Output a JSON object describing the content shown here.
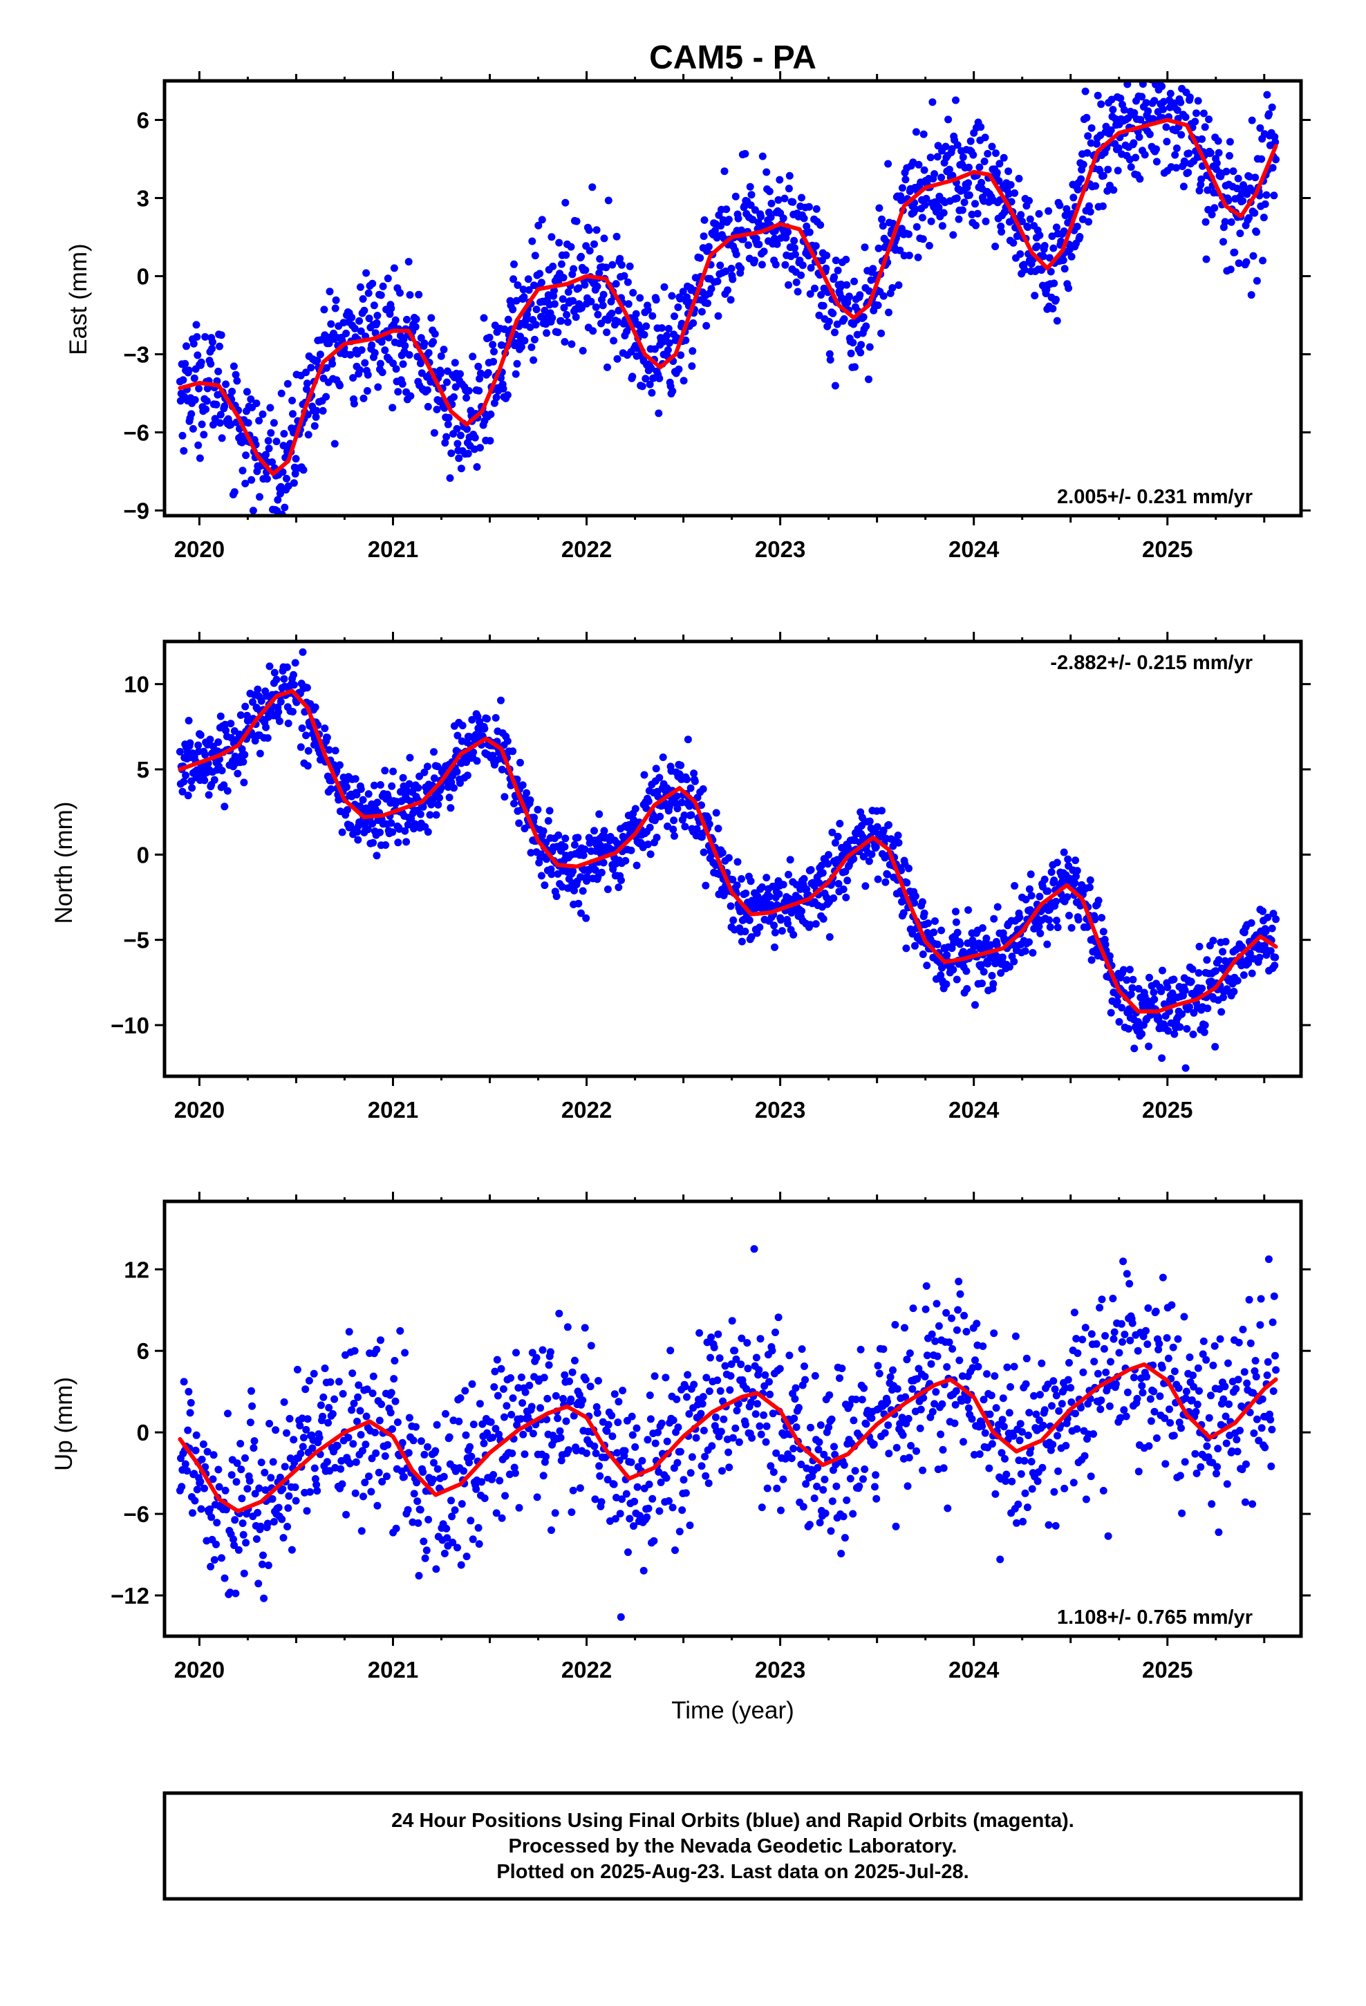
{
  "title": "CAM5 - PA",
  "colors": {
    "dots": "#0000ff",
    "fit": "#ff0000",
    "frame": "#000000"
  },
  "chart_data": [
    {
      "type": "scatter",
      "name": "east",
      "ylabel": "East (mm)",
      "xlabel": "",
      "xlim": [
        2019.82,
        2025.69
      ],
      "ylim": [
        -9.2,
        7.5
      ],
      "yticks": [
        -9,
        -6,
        -3,
        0,
        3,
        6
      ],
      "xticks": [
        2020,
        2021,
        2022,
        2023,
        2024,
        2025
      ],
      "rate_text": "2.005+/- 0.231 mm/yr",
      "rate_position": "bottom-right",
      "trend_rate": 2.005,
      "fit_points": [
        [
          2019.9,
          -4.3
        ],
        [
          2020.0,
          -4.1
        ],
        [
          2020.1,
          -4.2
        ],
        [
          2020.2,
          -5.4
        ],
        [
          2020.3,
          -6.9
        ],
        [
          2020.38,
          -7.6
        ],
        [
          2020.46,
          -7.1
        ],
        [
          2020.55,
          -5.0
        ],
        [
          2020.64,
          -3.3
        ],
        [
          2020.75,
          -2.6
        ],
        [
          2020.9,
          -2.4
        ],
        [
          2021.0,
          -2.1
        ],
        [
          2021.08,
          -2.1
        ],
        [
          2021.18,
          -3.4
        ],
        [
          2021.3,
          -5.2
        ],
        [
          2021.38,
          -5.7
        ],
        [
          2021.46,
          -5.2
        ],
        [
          2021.55,
          -3.6
        ],
        [
          2021.64,
          -1.7
        ],
        [
          2021.75,
          -0.5
        ],
        [
          2021.9,
          -0.3
        ],
        [
          2022.0,
          0.0
        ],
        [
          2022.1,
          -0.1
        ],
        [
          2022.2,
          -1.4
        ],
        [
          2022.3,
          -3.0
        ],
        [
          2022.38,
          -3.5
        ],
        [
          2022.46,
          -3.0
        ],
        [
          2022.55,
          -1.1
        ],
        [
          2022.64,
          0.8
        ],
        [
          2022.75,
          1.5
        ],
        [
          2022.9,
          1.7
        ],
        [
          2023.0,
          2.0
        ],
        [
          2023.1,
          1.8
        ],
        [
          2023.2,
          0.4
        ],
        [
          2023.3,
          -1.1
        ],
        [
          2023.38,
          -1.6
        ],
        [
          2023.46,
          -1.1
        ],
        [
          2023.55,
          0.8
        ],
        [
          2023.64,
          2.7
        ],
        [
          2023.75,
          3.4
        ],
        [
          2023.9,
          3.7
        ],
        [
          2024.0,
          4.0
        ],
        [
          2024.08,
          3.9
        ],
        [
          2024.18,
          2.7
        ],
        [
          2024.3,
          0.9
        ],
        [
          2024.38,
          0.3
        ],
        [
          2024.46,
          1.0
        ],
        [
          2024.55,
          2.9
        ],
        [
          2024.64,
          4.8
        ],
        [
          2024.75,
          5.5
        ],
        [
          2024.9,
          5.8
        ],
        [
          2025.0,
          6.0
        ],
        [
          2025.1,
          5.8
        ],
        [
          2025.2,
          4.3
        ],
        [
          2025.3,
          2.7
        ],
        [
          2025.38,
          2.3
        ],
        [
          2025.46,
          3.2
        ],
        [
          2025.56,
          5.0
        ]
      ]
    },
    {
      "type": "scatter",
      "name": "north",
      "ylabel": "North (mm)",
      "xlabel": "",
      "xlim": [
        2019.82,
        2025.69
      ],
      "ylim": [
        -13,
        12.5
      ],
      "yticks": [
        -10,
        -5,
        0,
        5,
        10
      ],
      "xticks": [
        2020,
        2021,
        2022,
        2023,
        2024,
        2025
      ],
      "rate_text": "-2.882+/- 0.215 mm/yr",
      "rate_position": "top-right",
      "trend_rate": -2.882,
      "fit_points": [
        [
          2019.9,
          5.0
        ],
        [
          2020.0,
          5.4
        ],
        [
          2020.1,
          5.8
        ],
        [
          2020.2,
          6.4
        ],
        [
          2020.3,
          8.0
        ],
        [
          2020.4,
          9.3
        ],
        [
          2020.48,
          9.6
        ],
        [
          2020.56,
          8.6
        ],
        [
          2020.65,
          5.8
        ],
        [
          2020.75,
          3.2
        ],
        [
          2020.85,
          2.2
        ],
        [
          2020.95,
          2.3
        ],
        [
          2021.05,
          2.7
        ],
        [
          2021.15,
          3.1
        ],
        [
          2021.25,
          4.3
        ],
        [
          2021.35,
          5.9
        ],
        [
          2021.48,
          6.8
        ],
        [
          2021.56,
          6.2
        ],
        [
          2021.65,
          3.5
        ],
        [
          2021.75,
          0.8
        ],
        [
          2021.85,
          -0.6
        ],
        [
          2021.95,
          -0.7
        ],
        [
          2022.05,
          -0.3
        ],
        [
          2022.15,
          0.1
        ],
        [
          2022.25,
          1.2
        ],
        [
          2022.35,
          2.9
        ],
        [
          2022.48,
          3.9
        ],
        [
          2022.56,
          3.1
        ],
        [
          2022.65,
          0.5
        ],
        [
          2022.75,
          -2.2
        ],
        [
          2022.85,
          -3.5
        ],
        [
          2022.95,
          -3.4
        ],
        [
          2023.05,
          -3.0
        ],
        [
          2023.15,
          -2.6
        ],
        [
          2023.25,
          -1.6
        ],
        [
          2023.35,
          -0.1
        ],
        [
          2023.48,
          1.0
        ],
        [
          2023.56,
          0.3
        ],
        [
          2023.65,
          -2.4
        ],
        [
          2023.75,
          -5.1
        ],
        [
          2023.85,
          -6.3
        ],
        [
          2023.95,
          -6.1
        ],
        [
          2024.05,
          -5.8
        ],
        [
          2024.15,
          -5.5
        ],
        [
          2024.25,
          -4.5
        ],
        [
          2024.35,
          -2.9
        ],
        [
          2024.48,
          -1.8
        ],
        [
          2024.56,
          -2.6
        ],
        [
          2024.65,
          -5.3
        ],
        [
          2024.75,
          -8.0
        ],
        [
          2024.85,
          -9.2
        ],
        [
          2024.95,
          -9.2
        ],
        [
          2025.05,
          -8.8
        ],
        [
          2025.15,
          -8.5
        ],
        [
          2025.25,
          -7.8
        ],
        [
          2025.35,
          -6.2
        ],
        [
          2025.48,
          -4.8
        ],
        [
          2025.56,
          -5.4
        ]
      ]
    },
    {
      "type": "scatter",
      "name": "up",
      "ylabel": "Up (mm)",
      "xlabel": "Time (year)",
      "xlim": [
        2019.82,
        2025.69
      ],
      "ylim": [
        -15,
        17
      ],
      "yticks": [
        -12,
        -6,
        0,
        6,
        12
      ],
      "xticks": [
        2020,
        2021,
        2022,
        2023,
        2024,
        2025
      ],
      "rate_text": "1.108+/- 0.765 mm/yr",
      "rate_position": "bottom-right",
      "trend_rate": 1.108,
      "fit_points": [
        [
          2019.9,
          -0.5
        ],
        [
          2020.0,
          -2.5
        ],
        [
          2020.1,
          -4.9
        ],
        [
          2020.2,
          -5.8
        ],
        [
          2020.32,
          -5.1
        ],
        [
          2020.45,
          -3.4
        ],
        [
          2020.6,
          -1.5
        ],
        [
          2020.75,
          0.0
        ],
        [
          2020.88,
          0.8
        ],
        [
          2021.0,
          -0.3
        ],
        [
          2021.1,
          -2.8
        ],
        [
          2021.22,
          -4.6
        ],
        [
          2021.35,
          -3.8
        ],
        [
          2021.5,
          -1.5
        ],
        [
          2021.65,
          0.2
        ],
        [
          2021.8,
          1.4
        ],
        [
          2021.9,
          1.9
        ],
        [
          2022.0,
          1.1
        ],
        [
          2022.1,
          -1.3
        ],
        [
          2022.22,
          -3.4
        ],
        [
          2022.35,
          -2.6
        ],
        [
          2022.5,
          -0.3
        ],
        [
          2022.65,
          1.5
        ],
        [
          2022.8,
          2.6
        ],
        [
          2022.88,
          2.9
        ],
        [
          2023.0,
          1.6
        ],
        [
          2023.1,
          -0.9
        ],
        [
          2023.22,
          -2.4
        ],
        [
          2023.35,
          -1.6
        ],
        [
          2023.5,
          0.6
        ],
        [
          2023.65,
          2.2
        ],
        [
          2023.8,
          3.5
        ],
        [
          2023.88,
          3.9
        ],
        [
          2024.0,
          2.6
        ],
        [
          2024.1,
          0.0
        ],
        [
          2024.22,
          -1.4
        ],
        [
          2024.35,
          -0.6
        ],
        [
          2024.5,
          1.7
        ],
        [
          2024.65,
          3.4
        ],
        [
          2024.8,
          4.6
        ],
        [
          2024.88,
          5.0
        ],
        [
          2025.0,
          3.8
        ],
        [
          2025.1,
          1.3
        ],
        [
          2025.22,
          -0.4
        ],
        [
          2025.35,
          0.7
        ],
        [
          2025.5,
          3.2
        ],
        [
          2025.56,
          3.9
        ]
      ]
    }
  ],
  "footer": {
    "line1": "24 Hour Positions Using Final Orbits (blue) and Rapid Orbits (magenta).",
    "line2": "Processed by the Nevada Geodetic Laboratory.",
    "line3": "Plotted on 2025-Aug-23. Last data on 2025-Jul-28."
  }
}
